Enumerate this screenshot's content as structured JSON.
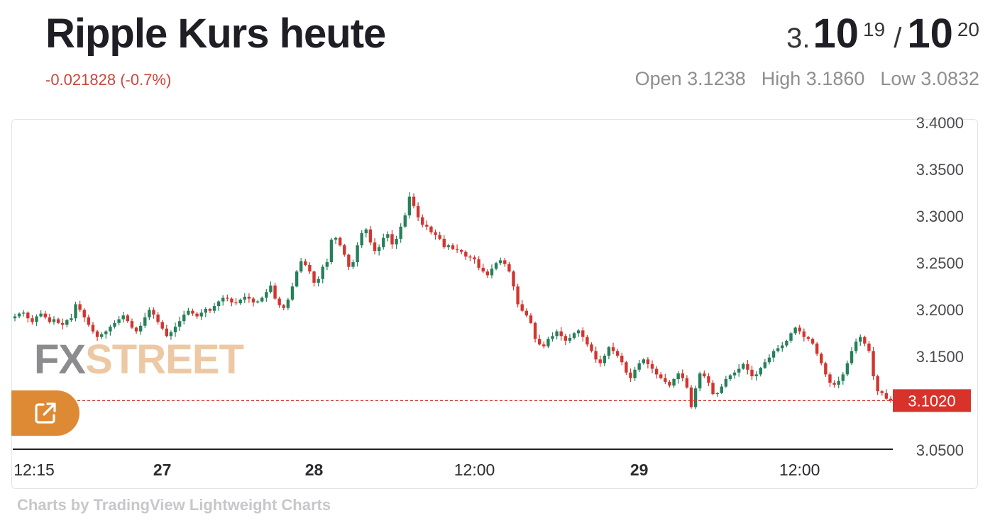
{
  "header": {
    "title": "Ripple Kurs heute",
    "change": "-0.021828 (-0.7%)",
    "bid_prefix": "3.",
    "bid_big": "10",
    "bid_sup": "19",
    "separator": "/",
    "ask_big": "10",
    "ask_sup": "20",
    "open": "Open 3.1238",
    "high": "High 3.1860",
    "low": "Low 3.0832"
  },
  "watermark": {
    "fx": "FX",
    "street": "STREET"
  },
  "credit": "Charts by TradingView Lightweight Charts",
  "colors": {
    "up": "#26805a",
    "down": "#d2352e",
    "price_label": "#d8332b",
    "button": "#de8a35"
  },
  "icons": {
    "external": "external-link-icon"
  },
  "chart_data": {
    "type": "candlestick",
    "ylim": [
      3.05,
      3.4
    ],
    "y_ticks": [
      "3.4000",
      "3.3500",
      "3.3000",
      "3.2500",
      "3.2000",
      "3.1500",
      "3.0500"
    ],
    "x_ticks": [
      {
        "label": "12:15",
        "index": 0,
        "bold": false
      },
      {
        "label": "27",
        "index": 34,
        "bold": true
      },
      {
        "label": "28",
        "index": 69,
        "bold": true
      },
      {
        "label": "12:00",
        "index": 106,
        "bold": false
      },
      {
        "label": "29",
        "index": 144,
        "bold": true
      },
      {
        "label": "12:00",
        "index": 181,
        "bold": false
      }
    ],
    "current_price": 3.102,
    "current_price_label": "3.1020",
    "closes": [
      3.192,
      3.195,
      3.196,
      3.19,
      3.186,
      3.192,
      3.195,
      3.191,
      3.186,
      3.189,
      3.185,
      3.183,
      3.188,
      3.19,
      3.205,
      3.199,
      3.191,
      3.183,
      3.176,
      3.17,
      3.173,
      3.176,
      3.181,
      3.185,
      3.189,
      3.193,
      3.187,
      3.18,
      3.176,
      3.182,
      3.191,
      3.199,
      3.194,
      3.186,
      3.179,
      3.171,
      3.175,
      3.181,
      3.187,
      3.194,
      3.198,
      3.195,
      3.192,
      3.196,
      3.2,
      3.198,
      3.203,
      3.208,
      3.212,
      3.211,
      3.207,
      3.206,
      3.21,
      3.213,
      3.211,
      3.207,
      3.208,
      3.212,
      3.218,
      3.225,
      3.211,
      3.204,
      3.201,
      3.21,
      3.224,
      3.24,
      3.251,
      3.247,
      3.24,
      3.228,
      3.232,
      3.245,
      3.25,
      3.274,
      3.276,
      3.268,
      3.258,
      3.245,
      3.25,
      3.268,
      3.281,
      3.285,
      3.271,
      3.262,
      3.266,
      3.276,
      3.28,
      3.269,
      3.275,
      3.288,
      3.3,
      3.32,
      3.31,
      3.298,
      3.29,
      3.288,
      3.282,
      3.279,
      3.275,
      3.266,
      3.268,
      3.264,
      3.263,
      3.261,
      3.256,
      3.255,
      3.253,
      3.244,
      3.24,
      3.236,
      3.243,
      3.249,
      3.252,
      3.248,
      3.24,
      3.224,
      3.205,
      3.198,
      3.193,
      3.185,
      3.168,
      3.162,
      3.16,
      3.168,
      3.171,
      3.176,
      3.171,
      3.166,
      3.169,
      3.174,
      3.177,
      3.17,
      3.162,
      3.155,
      3.146,
      3.142,
      3.15,
      3.159,
      3.155,
      3.15,
      3.143,
      3.132,
      3.126,
      3.135,
      3.142,
      3.146,
      3.141,
      3.136,
      3.13,
      3.126,
      3.122,
      3.118,
      3.125,
      3.131,
      3.126,
      3.116,
      3.095,
      3.115,
      3.131,
      3.128,
      3.121,
      3.109,
      3.11,
      3.117,
      3.125,
      3.129,
      3.132,
      3.136,
      3.141,
      3.135,
      3.128,
      3.13,
      3.137,
      3.143,
      3.148,
      3.155,
      3.158,
      3.161,
      3.166,
      3.174,
      3.18,
      3.176,
      3.17,
      3.168,
      3.163,
      3.152,
      3.142,
      3.13,
      3.121,
      3.119,
      3.123,
      3.13,
      3.142,
      3.155,
      3.165,
      3.17,
      3.163,
      3.155,
      3.128,
      3.112,
      3.11,
      3.104,
      3.102
    ]
  }
}
